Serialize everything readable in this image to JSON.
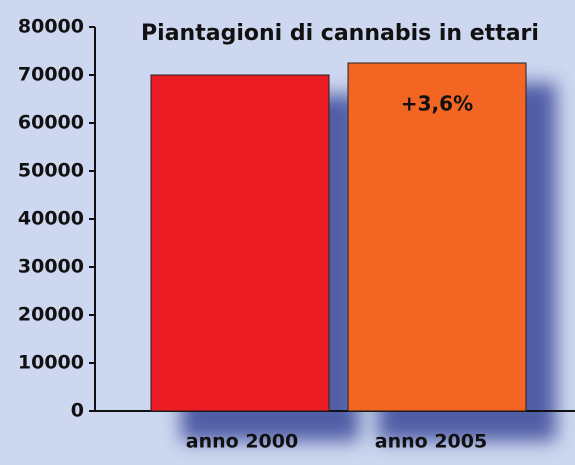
{
  "chart_data": {
    "type": "bar",
    "title": "Piantagioni di cannabis in ettari",
    "categories": [
      "anno 2000",
      "anno 2005"
    ],
    "values": [
      70000,
      72500
    ],
    "colors": [
      "#ec1c24",
      "#f26522"
    ],
    "annotation": "+3,6%",
    "ylim": [
      0,
      80000
    ],
    "yticks": [
      0,
      10000,
      20000,
      30000,
      40000,
      50000,
      60000,
      70000,
      80000
    ],
    "grid": false
  }
}
